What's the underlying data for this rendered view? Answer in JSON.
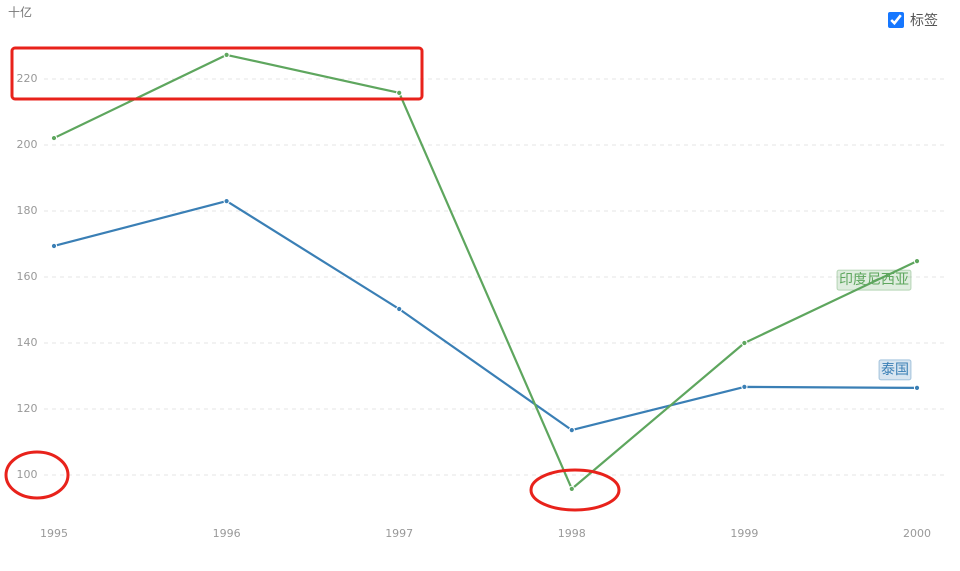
{
  "chart_data": {
    "type": "line",
    "unit_label": "十亿",
    "label_toggle": "标签",
    "categories": [
      "1995",
      "1996",
      "1997",
      "1998",
      "1999",
      "2000"
    ],
    "series": [
      {
        "name": "泰国",
        "color": "#3a7fb5",
        "values": [
          169.4,
          183,
          150.3,
          113.6,
          126.7,
          126.4
        ]
      },
      {
        "name": "印度尼西亚",
        "color": "#5ea65e",
        "values": [
          202.1,
          227.3,
          215.8,
          95.8,
          140,
          164.8
        ]
      }
    ],
    "ylim": [
      90,
      230
    ],
    "yticks": [
      100,
      120,
      140,
      160,
      180,
      200,
      220
    ],
    "grid": true
  }
}
